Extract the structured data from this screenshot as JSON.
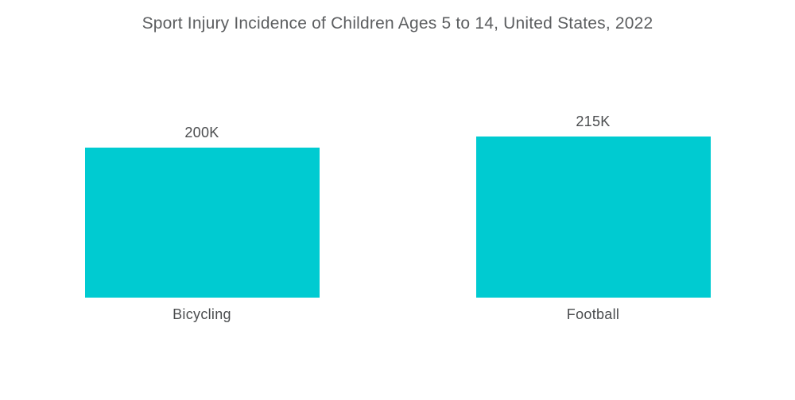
{
  "title": "Sport Injury Incidence of Children Ages 5 to 14, United States, 2022",
  "colors": {
    "bar": "#00CBD1",
    "title_text": "#5c5e60",
    "label_text": "#4b4d4f",
    "background": "#ffffff"
  },
  "chart_data": {
    "type": "bar",
    "title": "Sport Injury Incidence of Children Ages 5 to 14, United States, 2022",
    "categories": [
      "Bicycling",
      "Football"
    ],
    "values": [
      200000,
      215000
    ],
    "value_labels": [
      "200K",
      "215K"
    ],
    "xlabel": "",
    "ylabel": "",
    "ylim": [
      0,
      215000
    ],
    "grid": false,
    "legend": false,
    "axes_visible": false,
    "bar_color": "#00CBD1"
  },
  "bars": [
    {
      "category": "Bicycling",
      "value": 200000,
      "value_label": "200K"
    },
    {
      "category": "Football",
      "value": 215000,
      "value_label": "215K"
    }
  ]
}
